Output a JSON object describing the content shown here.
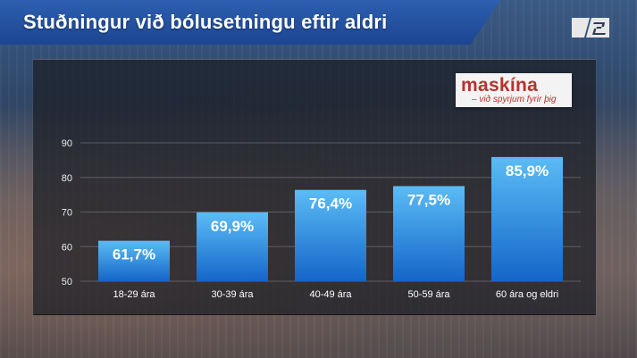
{
  "header": {
    "title": "Stuðningur við bólusetningu eftir aldri",
    "channel_logo_icon": "stod2-logo-icon"
  },
  "brand": {
    "name": "maskína",
    "tagline": "– við spyrjum fyrir þig"
  },
  "colors": {
    "title_bar": "#1c4592",
    "bar_top": "#5bbcf5",
    "bar_bottom": "#1565c8",
    "brand_red": "#b7322e"
  },
  "chart_data": {
    "type": "bar",
    "title": "",
    "xlabel": "",
    "ylabel": "",
    "ylim": [
      50,
      90
    ],
    "yticks": [
      50,
      60,
      70,
      80,
      90
    ],
    "grid": true,
    "categories": [
      "18-29 ára",
      "30-39 ára",
      "40-49 ára",
      "50-59 ára",
      "60 ára og eldri"
    ],
    "values": [
      61.7,
      69.9,
      76.4,
      77.5,
      85.9
    ],
    "value_labels": [
      "61,7%",
      "69,9%",
      "76,4%",
      "77,5%",
      "85,9%"
    ]
  }
}
